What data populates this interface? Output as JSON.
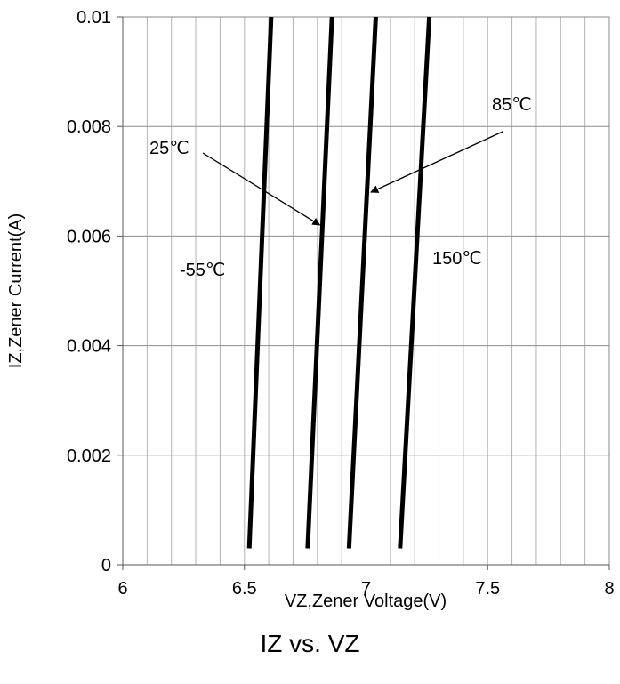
{
  "chart_data": {
    "type": "line",
    "title": "IZ vs. VZ",
    "xlabel": "VZ,Zener Voltage(V)",
    "ylabel": "IZ,Zener Current(A)",
    "xlim": [
      6,
      8
    ],
    "ylim": [
      0,
      0.01
    ],
    "x_ticks": [
      "6",
      "6.5",
      "7",
      "7.5",
      "8"
    ],
    "y_ticks": [
      "0",
      "0.002",
      "0.004",
      "0.006",
      "0.008",
      "0.01"
    ],
    "grid": true,
    "series": [
      {
        "name": "-55℃",
        "x": [
          6.52,
          6.61
        ],
        "y": [
          0.0003,
          0.01
        ]
      },
      {
        "name": "25℃",
        "x": [
          6.76,
          6.86
        ],
        "y": [
          0.0003,
          0.01
        ]
      },
      {
        "name": "85℃",
        "x": [
          6.93,
          7.04
        ],
        "y": [
          0.0003,
          0.01
        ]
      },
      {
        "name": "150℃",
        "x": [
          7.14,
          7.26
        ],
        "y": [
          0.0003,
          0.01
        ]
      }
    ],
    "annotations": [
      {
        "text": "25℃",
        "arrow_to": [
          6.81,
          0.0062
        ]
      },
      {
        "text": "85℃",
        "arrow_to": [
          7.02,
          0.0068
        ]
      }
    ]
  }
}
